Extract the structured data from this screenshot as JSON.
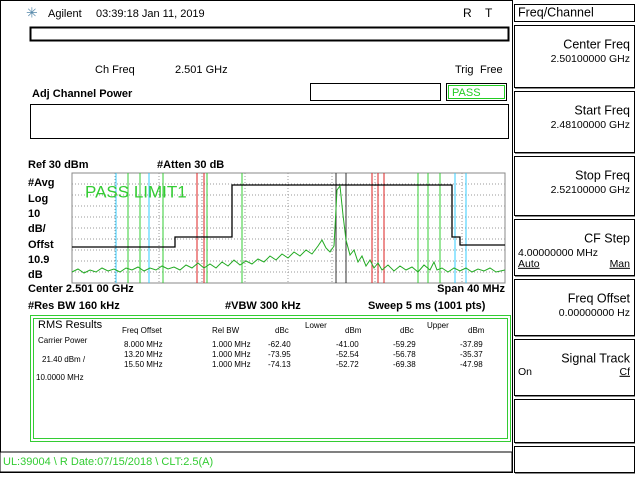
{
  "header": {
    "brand": "Agilent",
    "timestamp": "03:39:18 Jan 11, 2019",
    "indicators": [
      "R",
      "T"
    ]
  },
  "measurement": {
    "ch_freq_label": "Ch Freq",
    "ch_freq": "2.501 GHz",
    "trig_label": "Trig",
    "trig": "Free",
    "mode": "Adj Channel Power",
    "status": "PASS"
  },
  "display": {
    "ref": "Ref 30 dBm",
    "atten": "#Atten 30 dB",
    "left_labels": [
      "#Avg",
      "Log",
      "10",
      "dB/",
      "Offst",
      "10.9",
      "dB"
    ],
    "limit_text": "PASS LIMIT1",
    "center": "Center 2.501 00 GHz",
    "span": "Span 40 MHz",
    "res_bw": "#Res BW 160 kHz",
    "vbw": "#VBW 300 kHz",
    "sweep": "Sweep 5 ms (1001 pts)"
  },
  "results": {
    "title": "RMS Results",
    "carrier_label": "Carrier Power",
    "carrier_power": "21.40 dBm   /",
    "carrier_bw": "10.0000 MHz",
    "headers": [
      "Freq Offset",
      "Rel BW",
      "dBc",
      "dBm",
      "dBc",
      "dBm"
    ],
    "group_labels": [
      "Lower",
      "Upper"
    ],
    "rows": [
      [
        "8.000 MHz",
        "1.000 MHz",
        "-62.40",
        "-41.00",
        "-59.29",
        "-37.89"
      ],
      [
        "13.20 MHz",
        "1.000 MHz",
        "-73.95",
        "-52.54",
        "-56.78",
        "-35.37"
      ],
      [
        "15.50 MHz",
        "1.000 MHz",
        "-74.13",
        "-52.72",
        "-69.38",
        "-47.98"
      ]
    ]
  },
  "status_bar": "UL:39004 \\ R Date:07/15/2018 \\ CLT:2.5(A)",
  "softkeys": {
    "menu": "Freq/Channel",
    "keys": [
      {
        "label": "Center Freq",
        "value": "2.50100000 GHz"
      },
      {
        "label": "Start Freq",
        "value": "2.48100000 GHz"
      },
      {
        "label": "Stop Freq",
        "value": "2.52100000 GHz"
      },
      {
        "label": "CF Step",
        "value": "4.00000000 MHz",
        "options": [
          "Auto",
          "Man"
        ]
      },
      {
        "label": "Freq Offset",
        "value": "0.00000000  Hz"
      },
      {
        "label": "Signal Track",
        "options": [
          "On",
          "Cf"
        ]
      }
    ]
  }
}
